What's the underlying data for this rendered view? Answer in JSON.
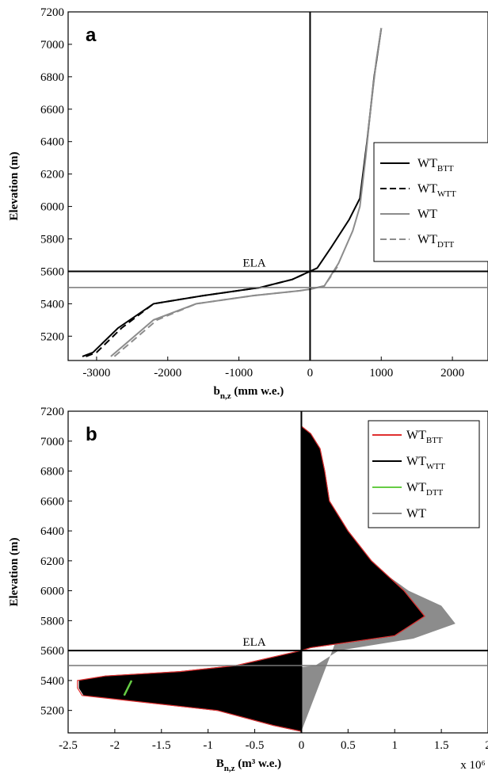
{
  "chart_data": [
    {
      "panel_label": "a",
      "type": "line",
      "xlabel_main": "b",
      "xlabel_sub": "n,z",
      "xlabel_rest": " (mm w.e.)",
      "ylabel": "Elevation (m)",
      "xlim": [
        -3400,
        2500
      ],
      "ylim": [
        5050,
        7200
      ],
      "xticks": [
        -3000,
        -2000,
        -1000,
        0,
        1000,
        2000
      ],
      "yticks": [
        5200,
        5400,
        5600,
        5800,
        6000,
        6200,
        6400,
        6600,
        6800,
        7000,
        7200
      ],
      "ela_label": "ELA",
      "ela_lines": [
        5600,
        5500
      ],
      "legend_position": "right",
      "series": [
        {
          "name_main": "WT",
          "name_sub": "BTT",
          "color": "#000000",
          "dash": "solid",
          "points": [
            [
              -3200,
              5075
            ],
            [
              -3050,
              5100
            ],
            [
              -2700,
              5250
            ],
            [
              -2200,
              5400
            ],
            [
              -1500,
              5450
            ],
            [
              -700,
              5500
            ],
            [
              -250,
              5550
            ],
            [
              0,
              5600
            ],
            [
              100,
              5620
            ],
            [
              300,
              5750
            ],
            [
              550,
              5920
            ],
            [
              700,
              6050
            ],
            [
              800,
              6400
            ],
            [
              900,
              6800
            ],
            [
              1000,
              7100
            ]
          ]
        },
        {
          "name_main": "WT",
          "name_sub": "WTT",
          "color": "#000000",
          "dash": "dashed",
          "points": [
            [
              -3150,
              5075
            ],
            [
              -3000,
              5100
            ],
            [
              -2650,
              5250
            ],
            [
              -2200,
              5400
            ],
            [
              -1500,
              5450
            ],
            [
              -700,
              5500
            ],
            [
              -250,
              5550
            ],
            [
              0,
              5600
            ]
          ]
        },
        {
          "name_main": "WT",
          "name_sub": "",
          "color": "#8c8c8c",
          "dash": "solid",
          "points": [
            [
              -2800,
              5075
            ],
            [
              -2600,
              5150
            ],
            [
              -2200,
              5300
            ],
            [
              -1600,
              5400
            ],
            [
              -800,
              5450
            ],
            [
              -150,
              5480
            ],
            [
              0,
              5490
            ],
            [
              200,
              5510
            ],
            [
              400,
              5650
            ],
            [
              600,
              5850
            ],
            [
              700,
              6000
            ],
            [
              780,
              6300
            ],
            [
              850,
              6600
            ],
            [
              930,
              6900
            ],
            [
              1000,
              7100
            ]
          ]
        },
        {
          "name_main": "WT",
          "name_sub": "DTT",
          "color": "#8c8c8c",
          "dash": "dashed",
          "points": [
            [
              -2750,
              5075
            ],
            [
              -2550,
              5150
            ],
            [
              -2150,
              5300
            ],
            [
              -1600,
              5400
            ],
            [
              -800,
              5450
            ],
            [
              -150,
              5480
            ],
            [
              0,
              5490
            ],
            [
              200,
              5510
            ],
            [
              400,
              5640
            ]
          ]
        }
      ]
    },
    {
      "panel_label": "b",
      "type": "area",
      "xlabel_main": "B",
      "xlabel_sub": "n,z",
      "xlabel_rest": " (m³ w.e.)",
      "xscale_note": "x 10⁶",
      "ylabel": "Elevation (m)",
      "xlim": [
        -2.5,
        2
      ],
      "ylim": [
        5050,
        7200
      ],
      "xticks": [
        -2.5,
        -2,
        -1.5,
        -1,
        -0.5,
        0,
        0.5,
        1,
        1.5,
        2
      ],
      "yticks": [
        5200,
        5400,
        5600,
        5800,
        6000,
        6200,
        6400,
        6600,
        6800,
        7000,
        7200
      ],
      "ela_label": "ELA",
      "ela_lines": [
        5600,
        5500
      ],
      "legend_position": "top-right",
      "series": [
        {
          "name_main": "WT",
          "name_sub": "BTT",
          "color": "#e03030",
          "points": [
            [
              0,
              7100
            ],
            [
              0.1,
              7050
            ],
            [
              0.2,
              6950
            ],
            [
              0.25,
              6800
            ],
            [
              0.3,
              6600
            ],
            [
              0.5,
              6400
            ],
            [
              0.75,
              6200
            ],
            [
              1.1,
              6000
            ],
            [
              1.32,
              5830
            ],
            [
              1.0,
              5700
            ],
            [
              0.1,
              5620
            ],
            [
              0,
              5600
            ],
            [
              -0.7,
              5500
            ],
            [
              -1.3,
              5460
            ],
            [
              -2.1,
              5430
            ],
            [
              -2.4,
              5400
            ],
            [
              -2.4,
              5350
            ],
            [
              -2.35,
              5300
            ],
            [
              -0.9,
              5200
            ],
            [
              -0.3,
              5100
            ],
            [
              0,
              5060
            ]
          ]
        },
        {
          "name_main": "WT",
          "name_sub": "WTT",
          "color": "#000000",
          "points": [
            [
              0,
              7100
            ],
            [
              0.1,
              7050
            ],
            [
              0.2,
              6950
            ],
            [
              0.25,
              6800
            ],
            [
              0.3,
              6600
            ],
            [
              0.5,
              6400
            ],
            [
              0.75,
              6200
            ],
            [
              1.1,
              6000
            ],
            [
              1.32,
              5830
            ],
            [
              1.0,
              5700
            ],
            [
              0.1,
              5620
            ],
            [
              0,
              5600
            ],
            [
              -0.7,
              5500
            ],
            [
              -1.3,
              5460
            ],
            [
              -2.1,
              5430
            ],
            [
              -2.38,
              5400
            ],
            [
              -2.38,
              5350
            ],
            [
              -2.33,
              5300
            ],
            [
              -0.9,
              5200
            ],
            [
              -0.3,
              5100
            ],
            [
              0,
              5060
            ]
          ]
        },
        {
          "name_main": "WT",
          "name_sub": "DTT",
          "color": "#66cc44",
          "points": [
            [
              -1.82,
              5400
            ],
            [
              -1.9,
              5300
            ]
          ]
        },
        {
          "name_main": "WT",
          "name_sub": "",
          "color": "#8c8c8c",
          "points": [
            [
              0.7,
              6200
            ],
            [
              1.15,
              6000
            ],
            [
              1.5,
              5900
            ],
            [
              1.65,
              5780
            ],
            [
              1.2,
              5680
            ],
            [
              0.4,
              5600
            ],
            [
              0.15,
              5500
            ],
            [
              0,
              5490
            ],
            [
              -0.2,
              5490
            ],
            [
              -0.5,
              5480
            ],
            [
              -1.0,
              5460
            ],
            [
              -1.82,
              5400
            ],
            [
              -1.9,
              5300
            ],
            [
              -0.8,
              5200
            ],
            [
              -0.3,
              5100
            ],
            [
              0,
              5060
            ]
          ]
        }
      ]
    }
  ]
}
